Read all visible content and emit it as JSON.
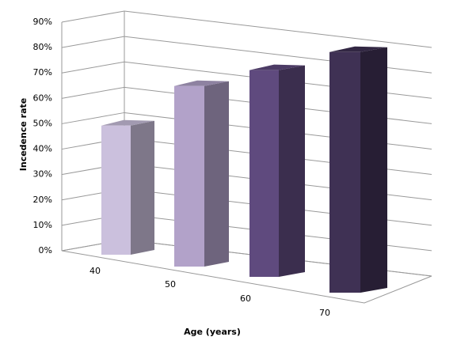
{
  "chart_data": {
    "type": "bar3d",
    "categories": [
      "40",
      "50",
      "60",
      "70"
    ],
    "values": [
      48,
      64,
      70,
      78
    ],
    "colors": [
      "#cbc0dd",
      "#b2a2c9",
      "#5f4a7e",
      "#3f3154"
    ],
    "xlabel": "Age (years)",
    "ylabel": "Incedence rate",
    "ylim": [
      0,
      90
    ],
    "yticks": [
      {
        "value": 0,
        "label": "0%"
      },
      {
        "value": 10,
        "label": "10%"
      },
      {
        "value": 20,
        "label": "20%"
      },
      {
        "value": 30,
        "label": "30%"
      },
      {
        "value": 40,
        "label": "40%"
      },
      {
        "value": 50,
        "label": "50%"
      },
      {
        "value": 60,
        "label": "60%"
      },
      {
        "value": 70,
        "label": "70%"
      },
      {
        "value": 80,
        "label": "80%"
      },
      {
        "value": 90,
        "label": "90%"
      }
    ],
    "grid": true
  }
}
